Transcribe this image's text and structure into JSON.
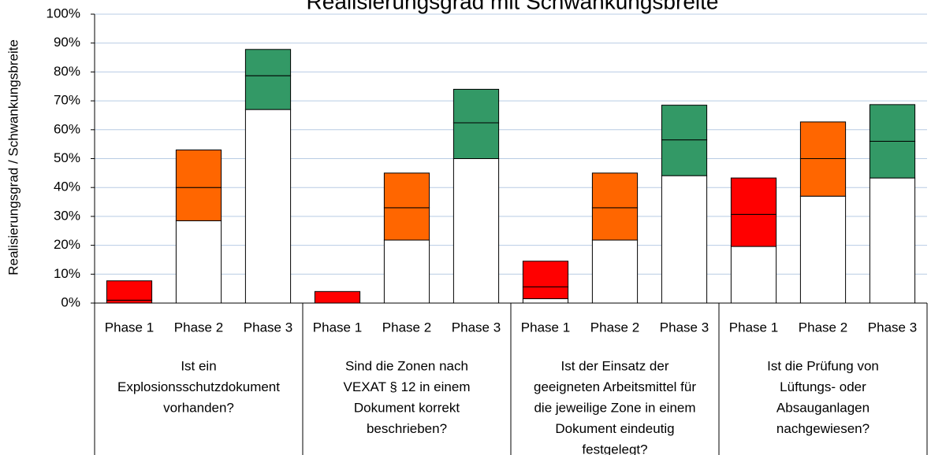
{
  "chart_data": {
    "type": "range-bar",
    "title": "Realisierungsgrad mit Schwankungsbreite",
    "y_label": "Realisierungsgrad / Schwankungsbreite",
    "ylim": [
      0,
      100
    ],
    "yticks": [
      {
        "value": 0,
        "label": "0%"
      },
      {
        "value": 10,
        "label": "10%"
      },
      {
        "value": 20,
        "label": "20%"
      },
      {
        "value": 30,
        "label": "30%"
      },
      {
        "value": 40,
        "label": "40%"
      },
      {
        "value": 50,
        "label": "50%"
      },
      {
        "value": 60,
        "label": "60%"
      },
      {
        "value": 70,
        "label": "70%"
      },
      {
        "value": 80,
        "label": "80%"
      },
      {
        "value": 90,
        "label": "90%"
      },
      {
        "value": 100,
        "label": "100%"
      }
    ],
    "grid": true,
    "groups": [
      {
        "label_lines": [
          "Ist ein",
          "Explosionsschutzdokument",
          "vorhanden?"
        ],
        "bars": [
          {
            "name": "Phase 1",
            "low": 0,
            "mid": 1,
            "high": 7.7,
            "color": "#ff0000"
          },
          {
            "name": "Phase 2",
            "low": 28.5,
            "mid": 40,
            "high": 53,
            "color": "#ff6600"
          },
          {
            "name": "Phase 3",
            "low": 67,
            "mid": 78.7,
            "high": 87.8,
            "color": "#339966"
          }
        ]
      },
      {
        "label_lines": [
          "Sind die Zonen nach",
          "VEXAT § 12 in einem",
          "Dokument korrekt",
          "beschrieben?"
        ],
        "bars": [
          {
            "name": "Phase 1",
            "low": 0,
            "mid": 0,
            "high": 4,
            "color": "#ff0000"
          },
          {
            "name": "Phase 2",
            "low": 21.8,
            "mid": 33,
            "high": 45,
            "color": "#ff6600"
          },
          {
            "name": "Phase 3",
            "low": 50,
            "mid": 62.4,
            "high": 74,
            "color": "#339966"
          }
        ]
      },
      {
        "label_lines": [
          "Ist der Einsatz der",
          "geeigneten Arbeitsmittel für",
          "die jeweilige Zone in einem",
          "Dokument eindeutig",
          "festgelegt?"
        ],
        "bars": [
          {
            "name": "Phase 1",
            "low": 1.5,
            "mid": 5.6,
            "high": 14.5,
            "color": "#ff0000"
          },
          {
            "name": "Phase 2",
            "low": 21.8,
            "mid": 33,
            "high": 45,
            "color": "#ff6600"
          },
          {
            "name": "Phase 3",
            "low": 44.1,
            "mid": 56.5,
            "high": 68.5,
            "color": "#339966"
          }
        ]
      },
      {
        "label_lines": [
          "Ist die Prüfung von",
          "Lüftungs- oder",
          "Absauganlagen",
          "nachgewiesen?"
        ],
        "bars": [
          {
            "name": "Phase 1",
            "low": 19.6,
            "mid": 30.7,
            "high": 43.3,
            "color": "#ff0000"
          },
          {
            "name": "Phase 2",
            "low": 37,
            "mid": 50,
            "high": 62.7,
            "color": "#ff6600"
          },
          {
            "name": "Phase 3",
            "low": 43.3,
            "mid": 56,
            "high": 68.7,
            "color": "#339966"
          }
        ]
      }
    ]
  }
}
